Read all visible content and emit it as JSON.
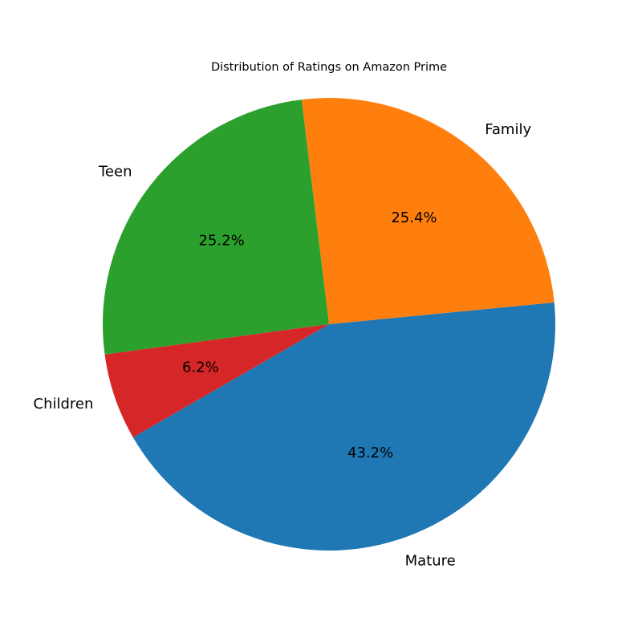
{
  "chart_data": {
    "type": "pie",
    "title": "Distribution of Ratings on Amazon Prime",
    "slices": [
      {
        "label": "Mature",
        "value": 43.2,
        "pct_label": "43.2%",
        "color": "#1f77b4"
      },
      {
        "label": "Family",
        "value": 25.4,
        "pct_label": "25.4%",
        "color": "#ff7f0e"
      },
      {
        "label": "Teen",
        "value": 25.2,
        "pct_label": "25.2%",
        "color": "#2ca02c"
      },
      {
        "label": "Children",
        "value": 6.2,
        "pct_label": "6.2%",
        "color": "#d62728"
      }
    ],
    "legend": "none"
  }
}
